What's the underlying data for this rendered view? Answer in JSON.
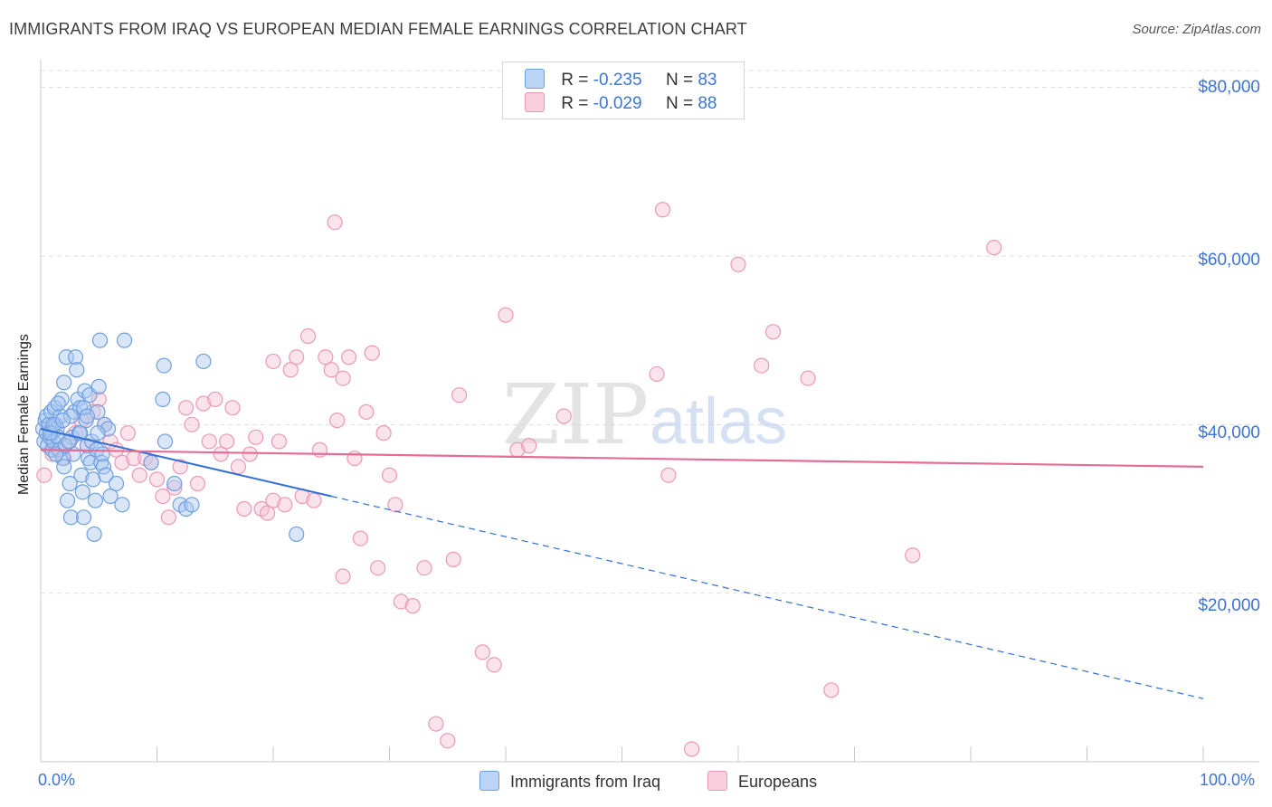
{
  "title": "IMMIGRANTS FROM IRAQ VS EUROPEAN MEDIAN FEMALE EARNINGS CORRELATION CHART",
  "source": "Source: ZipAtlas.com",
  "watermark": {
    "zip": "ZIP",
    "atlas": "atlas"
  },
  "legend": {
    "rows": [
      {
        "r_label": "R =",
        "r_value": "-0.235",
        "n_label": "N =",
        "n_value": "83"
      },
      {
        "r_label": "R =",
        "r_value": "-0.029",
        "n_label": "N =",
        "n_value": "88"
      }
    ]
  },
  "bottom_legend": {
    "series1": "Immigrants from Iraq",
    "series2": "Europeans"
  },
  "axis": {
    "ylabel": "Median Female Earnings",
    "x_min_label": "0.0%",
    "x_max_label": "100.0%",
    "y_ticks": [
      "$80,000",
      "$60,000",
      "$40,000",
      "$20,000"
    ]
  },
  "colors": {
    "blue_fill": "#a8c8f0",
    "blue_stroke": "#6f9fe0",
    "blue_line": "#2f6fd6",
    "pink_fill": "#f7c0d2",
    "pink_stroke": "#ec98b6",
    "pink_line": "#e56c95",
    "grid": "#dddddd",
    "tick_text": "#3d74d6"
  },
  "chart_data": {
    "type": "scatter",
    "title": "IMMIGRANTS FROM IRAQ VS EUROPEAN MEDIAN FEMALE EARNINGS CORRELATION CHART",
    "xlabel": "",
    "ylabel": "Median Female Earnings",
    "xlim": [
      0,
      100
    ],
    "ylim": [
      0,
      82000
    ],
    "y_ticks": [
      20000,
      40000,
      60000,
      80000
    ],
    "x_tick_marks": [
      0,
      10,
      20,
      30,
      40,
      50,
      60,
      70,
      80,
      90,
      100
    ],
    "series": [
      {
        "name": "Immigrants from Iraq",
        "r": -0.235,
        "n": 83,
        "trend": {
          "x0": 0,
          "y0": 39500,
          "x_solid_end": 25,
          "x1": 100,
          "y1": 7500
        },
        "points": [
          [
            0.2,
            39500
          ],
          [
            0.3,
            38000
          ],
          [
            0.4,
            40500
          ],
          [
            0.5,
            41000
          ],
          [
            0.5,
            39000
          ],
          [
            0.6,
            37500
          ],
          [
            0.7,
            40000
          ],
          [
            0.8,
            38500
          ],
          [
            0.9,
            41500
          ],
          [
            1.0,
            39000
          ],
          [
            1.0,
            37000
          ],
          [
            1.1,
            38000
          ],
          [
            1.2,
            42000
          ],
          [
            1.3,
            40000
          ],
          [
            1.4,
            39500
          ],
          [
            1.5,
            38500
          ],
          [
            1.6,
            37000
          ],
          [
            1.7,
            41000
          ],
          [
            1.8,
            43000
          ],
          [
            1.9,
            36000
          ],
          [
            2.0,
            45000
          ],
          [
            2.0,
            35000
          ],
          [
            2.2,
            48000
          ],
          [
            2.3,
            31000
          ],
          [
            2.5,
            33000
          ],
          [
            2.6,
            29000
          ],
          [
            2.7,
            38500
          ],
          [
            2.8,
            36500
          ],
          [
            2.9,
            41500
          ],
          [
            3.0,
            48000
          ],
          [
            3.1,
            46500
          ],
          [
            3.2,
            43000
          ],
          [
            3.3,
            39000
          ],
          [
            3.4,
            42000
          ],
          [
            3.5,
            34000
          ],
          [
            3.6,
            32000
          ],
          [
            3.7,
            29000
          ],
          [
            3.8,
            44000
          ],
          [
            3.9,
            40500
          ],
          [
            4.0,
            37500
          ],
          [
            4.1,
            36000
          ],
          [
            4.2,
            43500
          ],
          [
            4.3,
            35500
          ],
          [
            4.4,
            38000
          ],
          [
            4.5,
            33500
          ],
          [
            4.6,
            27000
          ],
          [
            4.7,
            31000
          ],
          [
            4.8,
            37000
          ],
          [
            4.9,
            41500
          ],
          [
            5.0,
            44500
          ],
          [
            5.1,
            50000
          ],
          [
            5.2,
            35500
          ],
          [
            5.3,
            36500
          ],
          [
            5.4,
            35000
          ],
          [
            5.5,
            40000
          ],
          [
            5.6,
            34000
          ],
          [
            5.8,
            39500
          ],
          [
            6.0,
            31500
          ],
          [
            6.5,
            33000
          ],
          [
            7.0,
            30500
          ],
          [
            7.2,
            50000
          ],
          [
            9.5,
            35500
          ],
          [
            10.5,
            43000
          ],
          [
            10.6,
            47000
          ],
          [
            10.7,
            38000
          ],
          [
            11.5,
            33000
          ],
          [
            12.0,
            30500
          ],
          [
            12.5,
            30000
          ],
          [
            13.0,
            30500
          ],
          [
            14.0,
            47500
          ],
          [
            22.0,
            27000
          ],
          [
            0.8,
            39000
          ],
          [
            1.1,
            40000
          ],
          [
            1.5,
            42500
          ],
          [
            2.1,
            37500
          ],
          [
            2.4,
            38000
          ],
          [
            2.6,
            41000
          ],
          [
            3.4,
            39000
          ],
          [
            3.7,
            42000
          ],
          [
            4.0,
            41000
          ],
          [
            4.9,
            39000
          ],
          [
            1.3,
            36500
          ],
          [
            1.9,
            40500
          ]
        ]
      },
      {
        "name": "Europeans",
        "r": -0.029,
        "n": 88,
        "trend": {
          "x0": 0,
          "y0": 37000,
          "x1": 100,
          "y1": 35000
        },
        "points": [
          [
            0.3,
            34000
          ],
          [
            1.0,
            36500
          ],
          [
            1.5,
            37000
          ],
          [
            2.0,
            36000
          ],
          [
            2.5,
            38000
          ],
          [
            3.0,
            39000
          ],
          [
            3.5,
            40500
          ],
          [
            4.0,
            37500
          ],
          [
            4.5,
            41500
          ],
          [
            5.0,
            43000
          ],
          [
            5.5,
            40000
          ],
          [
            6.0,
            38000
          ],
          [
            6.5,
            37000
          ],
          [
            7.0,
            35500
          ],
          [
            7.5,
            39000
          ],
          [
            8.0,
            36000
          ],
          [
            8.5,
            34000
          ],
          [
            9.0,
            36000
          ],
          [
            9.5,
            35500
          ],
          [
            10.0,
            33500
          ],
          [
            10.5,
            31500
          ],
          [
            11.0,
            29000
          ],
          [
            11.5,
            32500
          ],
          [
            12.0,
            35000
          ],
          [
            12.5,
            42000
          ],
          [
            13.0,
            40000
          ],
          [
            13.5,
            33000
          ],
          [
            14.0,
            42500
          ],
          [
            14.5,
            38000
          ],
          [
            15.0,
            43000
          ],
          [
            15.5,
            36500
          ],
          [
            16.0,
            38000
          ],
          [
            16.5,
            42000
          ],
          [
            17.0,
            35000
          ],
          [
            17.5,
            30000
          ],
          [
            18.0,
            36500
          ],
          [
            18.5,
            38500
          ],
          [
            19.0,
            30000
          ],
          [
            19.5,
            29500
          ],
          [
            20.0,
            31000
          ],
          [
            20.5,
            38000
          ],
          [
            21.0,
            30500
          ],
          [
            21.5,
            46500
          ],
          [
            22.0,
            48000
          ],
          [
            22.5,
            31500
          ],
          [
            23.0,
            50500
          ],
          [
            23.5,
            31000
          ],
          [
            24.0,
            37000
          ],
          [
            24.5,
            48000
          ],
          [
            25.0,
            46500
          ],
          [
            25.5,
            40500
          ],
          [
            26.0,
            45500
          ],
          [
            26.5,
            48000
          ],
          [
            27.0,
            36000
          ],
          [
            27.5,
            26500
          ],
          [
            28.0,
            41500
          ],
          [
            28.5,
            48500
          ],
          [
            29.0,
            23000
          ],
          [
            29.5,
            39000
          ],
          [
            30.0,
            34000
          ],
          [
            30.5,
            30500
          ],
          [
            31.0,
            19000
          ],
          [
            32.0,
            18500
          ],
          [
            33.0,
            23000
          ],
          [
            34.0,
            4500
          ],
          [
            35.0,
            2500
          ],
          [
            35.5,
            24000
          ],
          [
            36.0,
            43500
          ],
          [
            38.0,
            13000
          ],
          [
            39.0,
            11500
          ],
          [
            40.0,
            53000
          ],
          [
            41.0,
            37000
          ],
          [
            42.0,
            37500
          ],
          [
            45.0,
            41000
          ],
          [
            53.0,
            46000
          ],
          [
            53.5,
            65500
          ],
          [
            54.0,
            34000
          ],
          [
            56.0,
            1500
          ],
          [
            60.0,
            59000
          ],
          [
            62.0,
            47000
          ],
          [
            63.0,
            51000
          ],
          [
            66.0,
            45500
          ],
          [
            68.0,
            8500
          ],
          [
            75.0,
            24500
          ],
          [
            82.0,
            61000
          ],
          [
            25.3,
            64000
          ],
          [
            26.0,
            22000
          ],
          [
            20.0,
            47500
          ]
        ]
      }
    ]
  }
}
